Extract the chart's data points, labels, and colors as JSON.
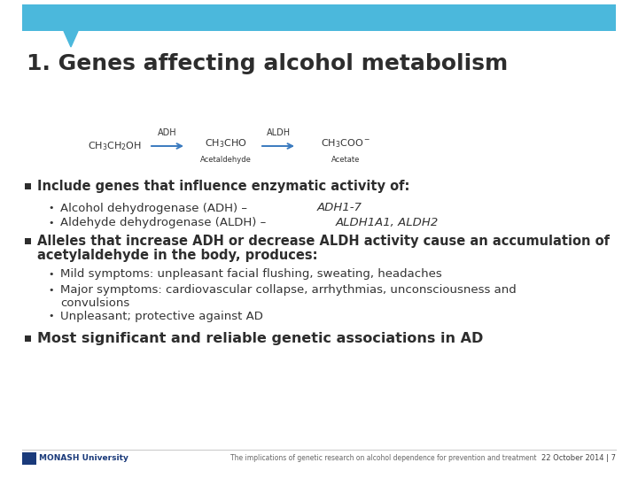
{
  "title": "1. Genes affecting alcohol metabolism",
  "header_bar_color": "#4bb8dc",
  "bg_color": "#ffffff",
  "title_color": "#2d2d2d",
  "title_fontsize": 18,
  "bullet_color": "#2d2d2d",
  "bold_bullet_fontsize": 10.5,
  "sub_bullet_fontsize": 9.5,
  "bullet1_text": "Include genes that influence enzymatic activity of:",
  "bullet1_sub1_normal": "Alcohol dehydrogenase (ADH) – ",
  "bullet1_sub1_italic": "ADH1-7",
  "bullet1_sub2_normal": "Aldehyde dehydrogenase (ALDH) – ",
  "bullet1_sub2_italic": "ALDH1A1, ALDH2",
  "bullet2_line1": "Alleles that increase ADH or decrease ALDH activity cause an accumulation of",
  "bullet2_line2": "acetylaldehyde in the body, produces:",
  "bullet2_sub1": "Mild symptoms: unpleasant facial flushing, sweating, headaches",
  "bullet2_sub2a": "Major symptoms: cardiovascular collapse, arrhythmias, unconsciousness and",
  "bullet2_sub2b": "convulsions",
  "bullet2_sub3": "Unpleasant; protective against AD",
  "bullet3_text": "Most significant and reliable genetic associations in AD",
  "footer_center": "The implications of genetic research on alcohol dependence for prevention and treatment",
  "footer_right": "22 October 2014 | 7",
  "monash_text": "MONASH University"
}
